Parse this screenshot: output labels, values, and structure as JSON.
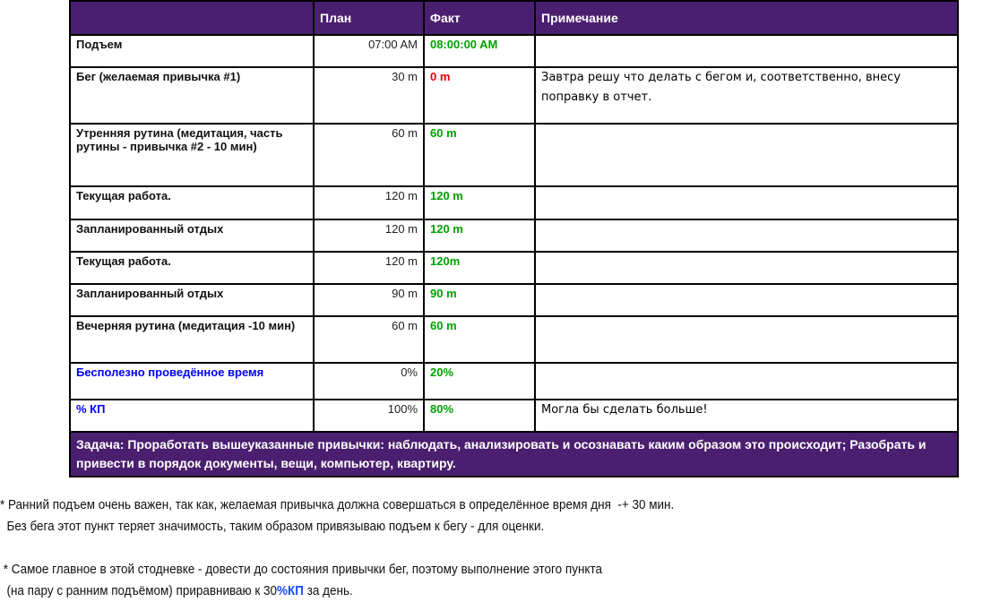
{
  "headers": [
    "",
    "План",
    "Факт",
    "Примечание"
  ],
  "colors": {
    "header_bg": "#4b1f6f",
    "good": "#00a000",
    "bad": "#e00000",
    "highlight": "#0000ff"
  },
  "rows": [
    {
      "name": "Подъем",
      "plan": "07:00 AM",
      "fact": "08:00:00 AM",
      "note": "",
      "fact_color": "#00a000"
    },
    {
      "name": "Бег (желаемая привычка #1)",
      "plan": "30 m",
      "fact": "0 m",
      "note": "Завтра решу что делать с бегом и, соответственно, внесу поправку в отчет.",
      "fact_color": "#e00000"
    },
    {
      "name": "Утренняя  рутина (медитация, часть рутины - привычка #2 -  10 мин)",
      "plan": "60 m",
      "fact": "60 m",
      "note": "",
      "fact_color": "#00a000"
    },
    {
      "name": "Текущая работа.",
      "plan": "120 m",
      "fact": "120 m",
      "note": "",
      "fact_color": "#00a000"
    },
    {
      "name": "Запланированный отдых",
      "plan": "120 m",
      "fact": "120 m",
      "note": "",
      "fact_color": "#00a000"
    },
    {
      "name": "Текущая работа.",
      "plan": "120 m",
      "fact": "120m",
      "note": "",
      "fact_color": "#00a000"
    },
    {
      "name": "Запланированный отдых",
      "plan": "90 m",
      "fact": "90 m",
      "note": "",
      "fact_color": "#00a000"
    },
    {
      "name": "Вечерняя рутина  (медитация -10 мин)",
      "plan": "60 m",
      "fact": "60 m",
      "note": "",
      "fact_color": "#00a000"
    },
    {
      "name": "Бесполезно проведённое время",
      "plan": "0%",
      "fact": "20%",
      "note": "",
      "fact_color": "#00a000",
      "name_color": "#0000ff"
    },
    {
      "name": "% КП",
      "plan": "100%",
      "fact": "80%",
      "note": "Могла бы сделать больше!",
      "fact_color": "#00a000",
      "name_color": "#0000ff"
    }
  ],
  "task": "Задача: Проработать  вышеуказанные привычки: наблюдать, анализировать и осознавать каким образом это происходит; Разобрать и привести в порядок документы, вещи, компьютер, квартиру.",
  "notes": {
    "n1a": "* Ранний подъем очень важен, так как, желаемая привычка должна совершаться в определённое время дня  -+ 30 мин.",
    "n1b": "  Без бега этот пункт теряет значимость, таким образом привязываю подъем к бегу - для оценки.",
    "n2a": " * Самое главное в этой стодневке - довести до состояния привычки бег, поэтому выполнение этого пункта",
    "n2b": "  (на пару с ранним подъёмом) приравниваю к 30",
    "n2c": "%КП",
    "n2d": " за день."
  }
}
